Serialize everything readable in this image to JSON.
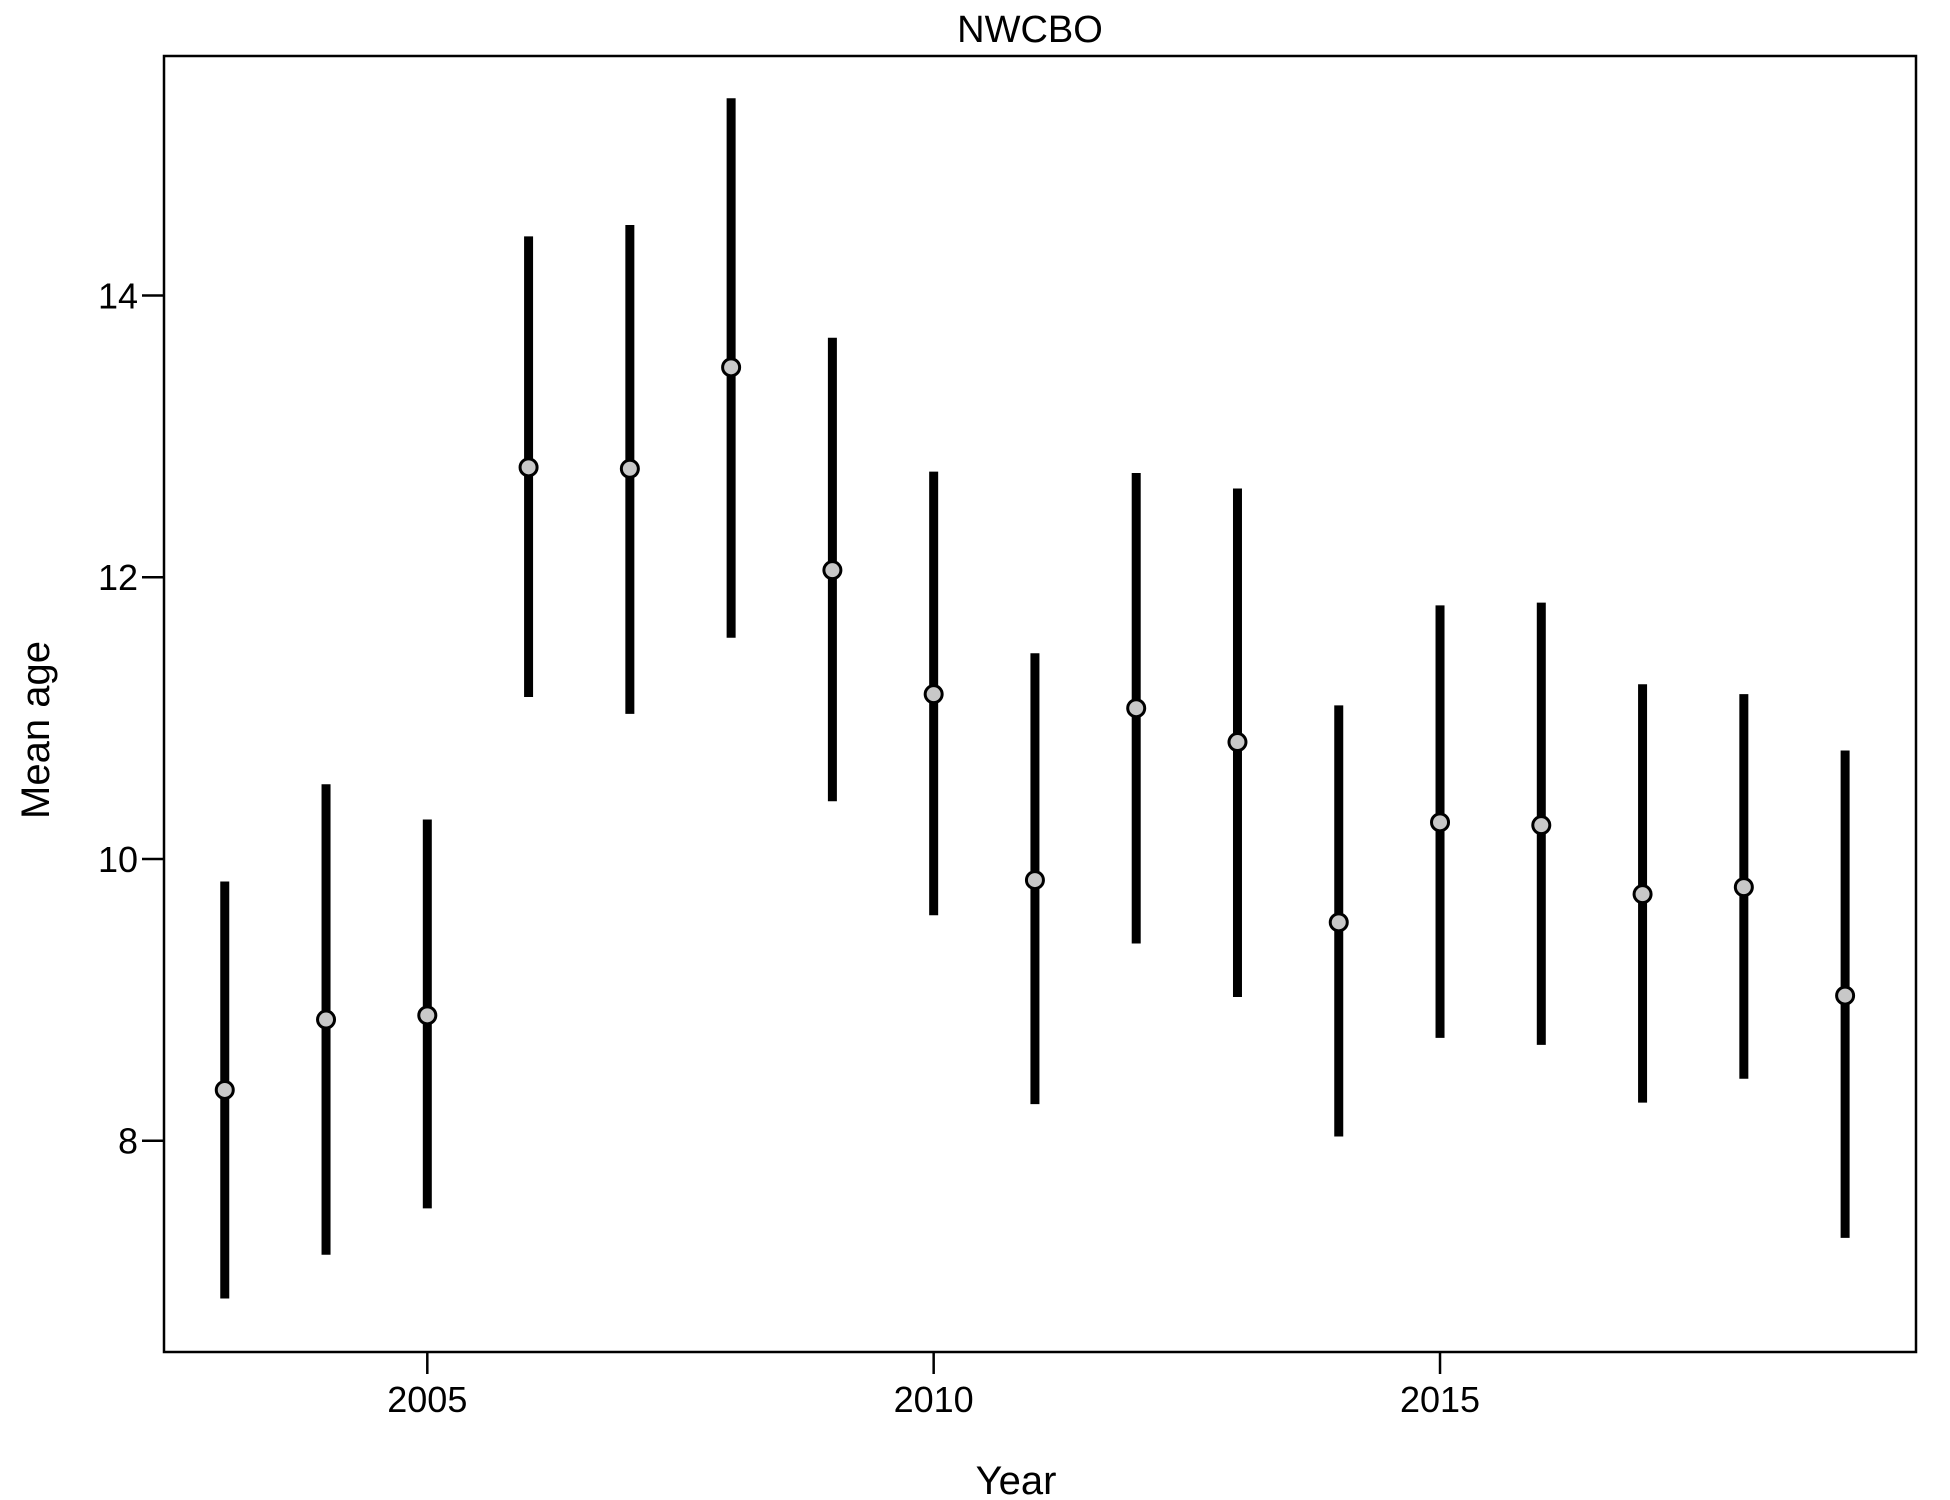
{
  "chart_data": {
    "type": "scatter",
    "title": "NWCBO",
    "xlabel": "Year",
    "ylabel": "Mean age",
    "xlim": [
      2002.4,
      2019.7
    ],
    "ylim": [
      6.5,
      15.7
    ],
    "xticks": [
      2005,
      2010,
      2015
    ],
    "yticks": [
      8,
      10,
      12,
      14
    ],
    "grid": false,
    "legend": "none",
    "colors": {
      "point_fill": "#c8c8c8",
      "point_stroke": "#000000",
      "error_bar": "#000000"
    },
    "series": [
      {
        "x": [
          2003,
          2004,
          2005,
          2006,
          2007,
          2008,
          2009,
          2010,
          2011,
          2012,
          2013,
          2014,
          2015,
          2016,
          2017,
          2018,
          2019
        ],
        "y": [
          8.36,
          8.86,
          8.89,
          12.78,
          12.77,
          13.49,
          12.05,
          11.17,
          9.85,
          11.07,
          10.83,
          9.55,
          10.26,
          10.24,
          9.75,
          9.8,
          9.03
        ],
        "lower": [
          6.88,
          7.19,
          7.52,
          11.15,
          11.03,
          11.57,
          10.41,
          9.6,
          8.26,
          9.4,
          9.02,
          8.03,
          8.73,
          8.68,
          8.27,
          8.44,
          7.31
        ],
        "upper": [
          9.84,
          10.53,
          10.28,
          14.42,
          14.5,
          15.4,
          13.7,
          12.75,
          11.46,
          12.74,
          12.63,
          11.09,
          11.8,
          11.82,
          11.24,
          11.17,
          10.77
        ]
      }
    ]
  }
}
